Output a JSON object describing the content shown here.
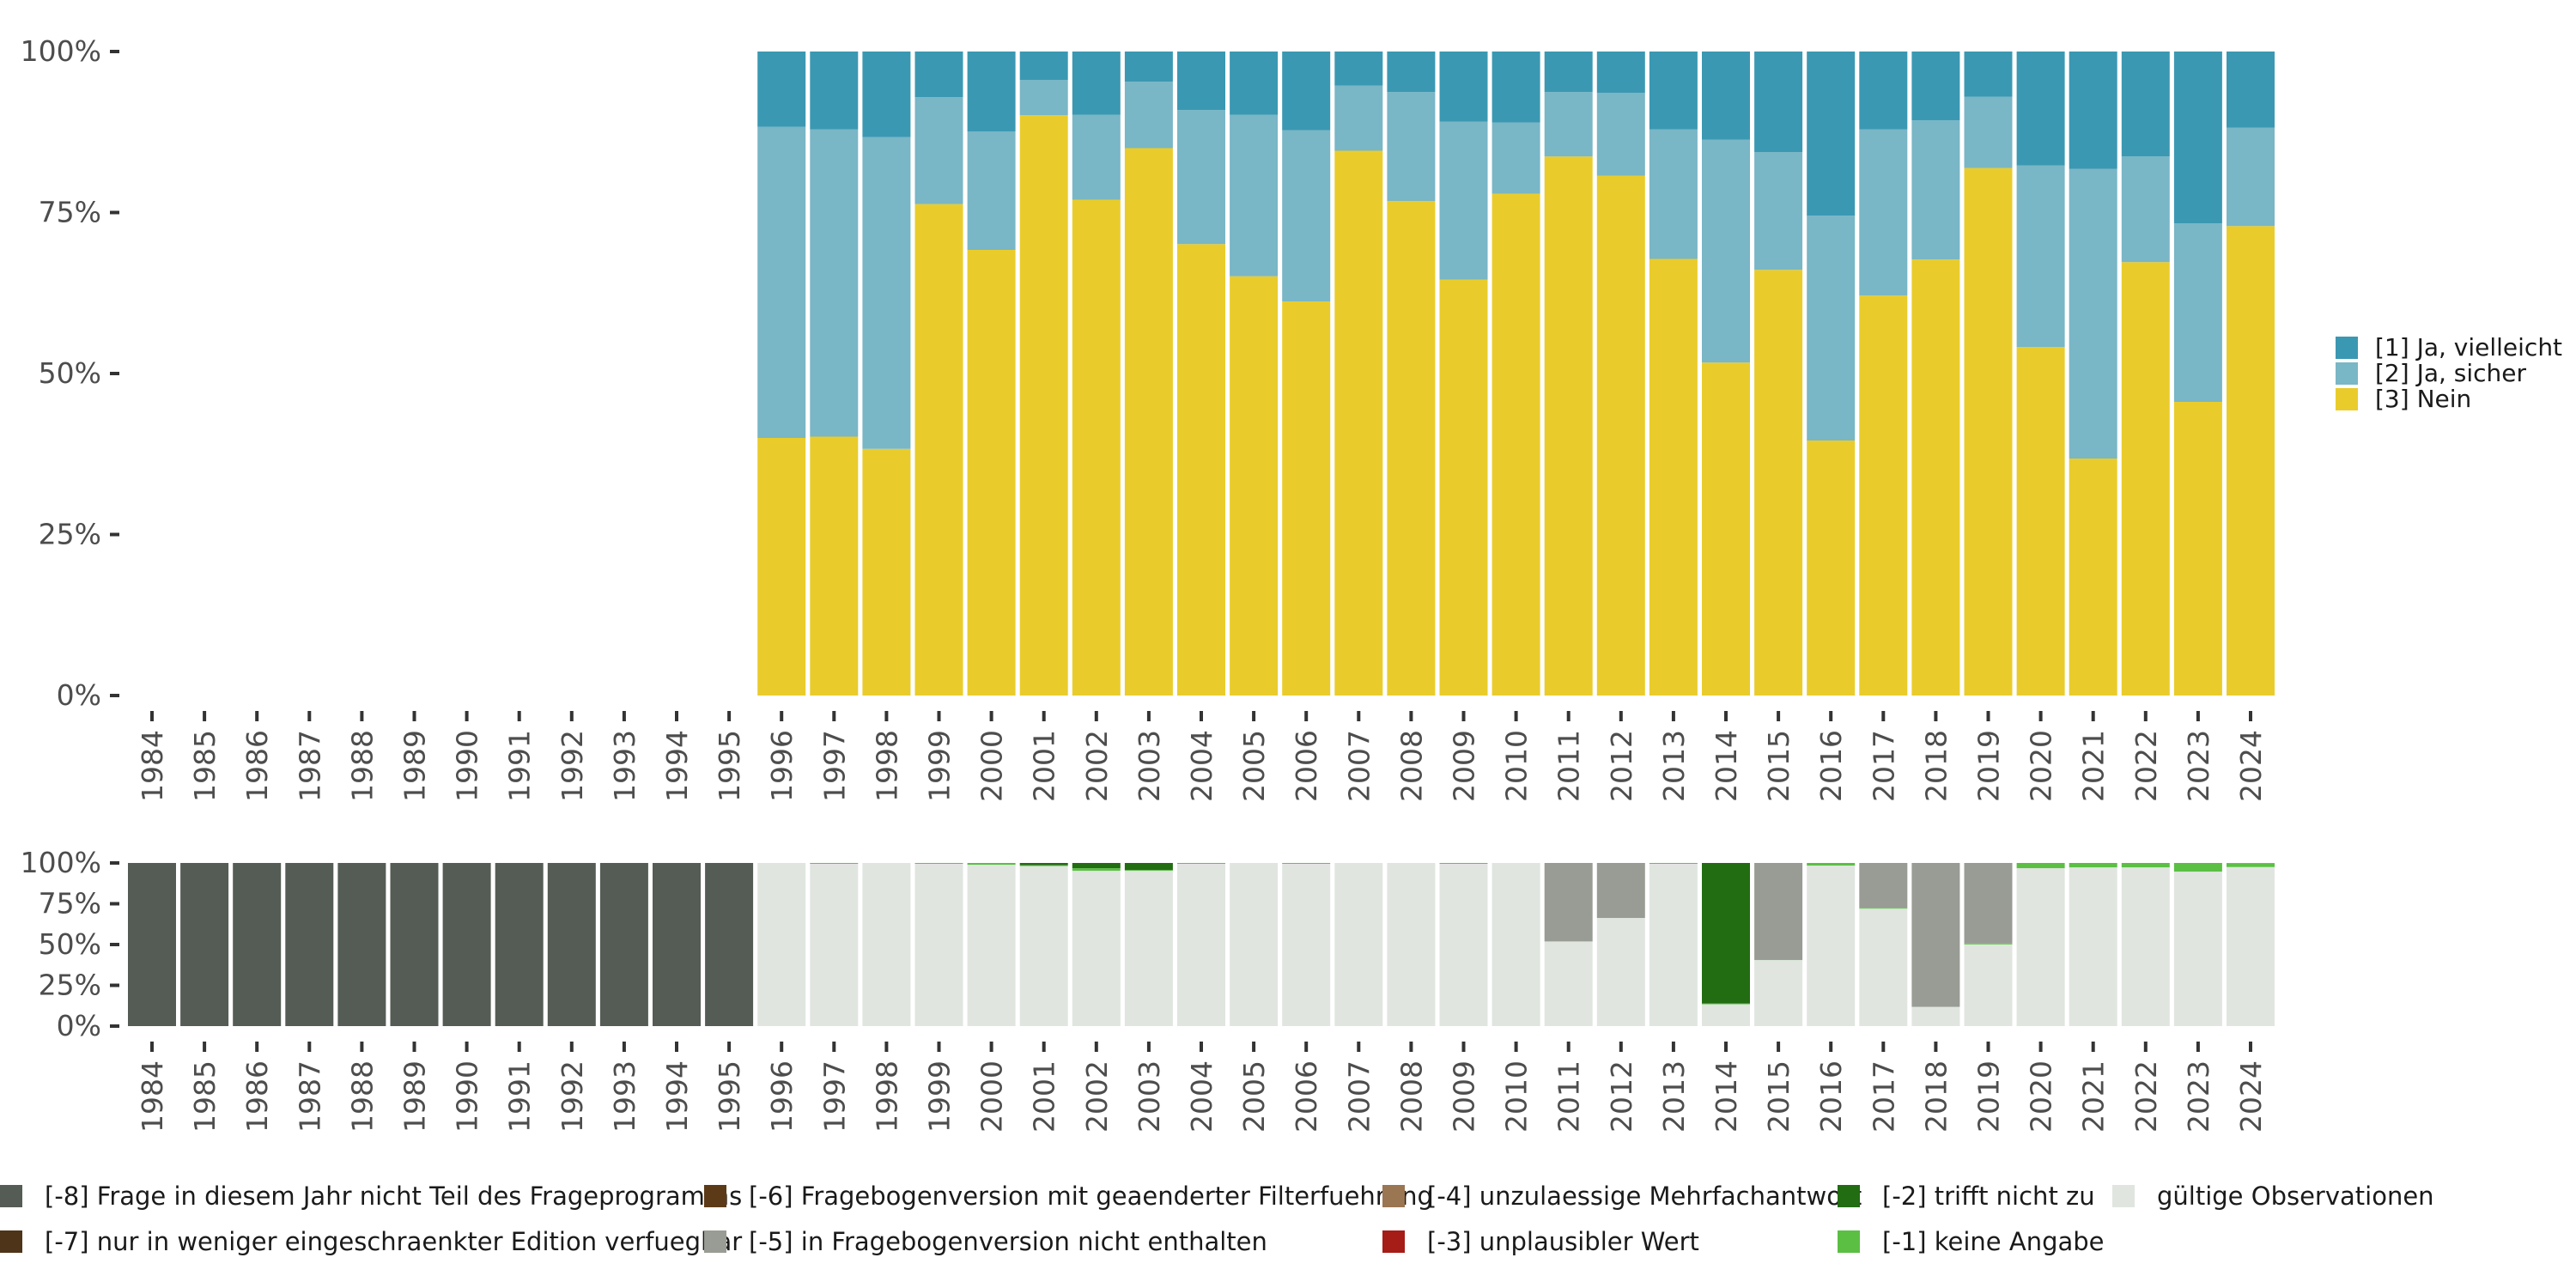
{
  "chart_data": [
    {
      "id": "main",
      "type": "bar",
      "stacked": true,
      "title": "",
      "xlabel": "",
      "ylabel": "",
      "ylim": [
        0,
        100
      ],
      "y_ticks": [
        "0%",
        "25%",
        "50%",
        "75%",
        "100%"
      ],
      "y_tick_values": [
        0,
        25,
        50,
        75,
        100
      ],
      "legend_position": "right",
      "categories": [
        "1984",
        "1985",
        "1986",
        "1987",
        "1988",
        "1989",
        "1990",
        "1991",
        "1992",
        "1993",
        "1994",
        "1995",
        "1996",
        "1997",
        "1998",
        "1999",
        "2000",
        "2001",
        "2002",
        "2003",
        "2004",
        "2005",
        "2006",
        "2007",
        "2008",
        "2009",
        "2010",
        "2011",
        "2012",
        "2013",
        "2014",
        "2015",
        "2016",
        "2017",
        "2018",
        "2019",
        "2020",
        "2021",
        "2022",
        "2023",
        "2024"
      ],
      "series": [
        {
          "name": "[3] Nein",
          "color": "#e9cc2b",
          "values": [
            null,
            null,
            null,
            null,
            null,
            null,
            null,
            null,
            null,
            null,
            null,
            null,
            40.0,
            40.2,
            38.3,
            76.3,
            69.2,
            90.1,
            77.0,
            85.0,
            70.1,
            65.1,
            61.2,
            84.6,
            76.8,
            64.6,
            77.9,
            83.7,
            80.7,
            67.8,
            51.7,
            66.1,
            39.6,
            62.1,
            67.7,
            81.9,
            54.1,
            36.8,
            67.3,
            45.6,
            72.9
          ]
        },
        {
          "name": "[2] Ja, sicher",
          "color": "#79b6c6",
          "values": [
            null,
            null,
            null,
            null,
            null,
            null,
            null,
            null,
            null,
            null,
            null,
            null,
            48.3,
            47.7,
            48.4,
            16.6,
            18.4,
            5.5,
            13.2,
            10.3,
            20.8,
            25.1,
            26.6,
            10.1,
            16.9,
            24.5,
            11.1,
            10.0,
            12.9,
            20.1,
            34.6,
            18.3,
            34.9,
            25.8,
            21.6,
            11.1,
            28.2,
            45.0,
            16.4,
            27.7,
            15.3
          ]
        },
        {
          "name": "[1] Ja, vielleicht",
          "color": "#3b98b2",
          "values": [
            null,
            null,
            null,
            null,
            null,
            null,
            null,
            null,
            null,
            null,
            null,
            null,
            11.7,
            12.1,
            13.3,
            7.1,
            12.4,
            4.4,
            9.8,
            4.7,
            9.1,
            9.8,
            12.2,
            5.3,
            6.3,
            10.9,
            11.0,
            6.3,
            6.4,
            12.1,
            13.7,
            15.6,
            25.5,
            12.1,
            10.7,
            7.0,
            17.7,
            18.2,
            16.3,
            26.7,
            11.8
          ]
        }
      ],
      "legend": [
        {
          "label": "[1] Ja, vielleicht",
          "color": "#3b98b2"
        },
        {
          "label": "[2] Ja, sicher",
          "color": "#79b6c6"
        },
        {
          "label": "[3] Nein",
          "color": "#e9cc2b"
        }
      ]
    },
    {
      "id": "missing",
      "type": "bar",
      "stacked": true,
      "title": "",
      "xlabel": "",
      "ylabel": "",
      "ylim": [
        0,
        100
      ],
      "y_ticks": [
        "0%",
        "25%",
        "50%",
        "75%",
        "100%"
      ],
      "y_tick_values": [
        0,
        25,
        50,
        75,
        100
      ],
      "legend_position": "bottom",
      "categories": [
        "1984",
        "1985",
        "1986",
        "1987",
        "1988",
        "1989",
        "1990",
        "1991",
        "1992",
        "1993",
        "1994",
        "1995",
        "1996",
        "1997",
        "1998",
        "1999",
        "2000",
        "2001",
        "2002",
        "2003",
        "2004",
        "2005",
        "2006",
        "2007",
        "2008",
        "2009",
        "2010",
        "2011",
        "2012",
        "2013",
        "2014",
        "2015",
        "2016",
        "2017",
        "2018",
        "2019",
        "2020",
        "2021",
        "2022",
        "2023",
        "2024"
      ],
      "series": [
        {
          "name": "gültige Observationen",
          "color": "#e0e5e0",
          "values": [
            0,
            0,
            0,
            0,
            0,
            0,
            0,
            0,
            0,
            0,
            0,
            0,
            100,
            99.5,
            100,
            99.5,
            98.9,
            98.1,
            95.2,
            95.2,
            99.5,
            100,
            99.5,
            100,
            100,
            99.5,
            100,
            51.9,
            66.3,
            99.5,
            13.4,
            40.5,
            98.4,
            72.0,
            11.8,
            50.1,
            96.8,
            97.3,
            97.3,
            94.7,
            97.5
          ]
        },
        {
          "name": "[-1] keine Angabe",
          "color": "#5bbf44",
          "values": [
            0,
            0,
            0,
            0,
            0,
            0,
            0,
            0,
            0,
            0,
            0,
            0,
            0,
            0.5,
            0,
            0.5,
            1.1,
            0.5,
            1.6,
            0.5,
            0.5,
            0,
            0.5,
            0,
            0,
            0.5,
            0,
            0,
            0,
            0.5,
            0.5,
            0.5,
            1.6,
            0.5,
            0,
            0.5,
            3.2,
            2.7,
            2.7,
            5.3,
            2.0
          ]
        },
        {
          "name": "[-2] trifft nicht zu",
          "color": "#226c12",
          "values": [
            0,
            0,
            0,
            0,
            0,
            0,
            0,
            0,
            0,
            0,
            0,
            0,
            0,
            0,
            0,
            0,
            0,
            1.4,
            3.2,
            4.3,
            0,
            0,
            0,
            0,
            0,
            0,
            0,
            0,
            0,
            0,
            86.1,
            0,
            0,
            0,
            0,
            0,
            0,
            0,
            0,
            0,
            0
          ]
        },
        {
          "name": "[-3] unplausibler Wert",
          "color": "#a61c17",
          "values": [
            0,
            0,
            0,
            0,
            0,
            0,
            0,
            0,
            0,
            0,
            0,
            0,
            0,
            0,
            0,
            0,
            0,
            0,
            0,
            0,
            0,
            0,
            0,
            0,
            0,
            0,
            0,
            0,
            0,
            0,
            0,
            0,
            0,
            0,
            0,
            0,
            0,
            0,
            0,
            0,
            0
          ]
        },
        {
          "name": "[-4] unzulaessige Mehrfachantwort",
          "color": "#9a7653",
          "values": [
            0,
            0,
            0,
            0,
            0,
            0,
            0,
            0,
            0,
            0,
            0,
            0,
            0,
            0,
            0,
            0,
            0,
            0,
            0,
            0,
            0,
            0,
            0,
            0,
            0,
            0,
            0,
            0,
            0,
            0,
            0,
            0,
            0,
            0,
            0,
            0,
            0,
            0,
            0,
            0,
            0
          ]
        },
        {
          "name": "[-5] in Fragebogenversion nicht enthalten",
          "color": "#989c94",
          "values": [
            0,
            0,
            0,
            0,
            0,
            0,
            0,
            0,
            0,
            0,
            0,
            0,
            0,
            0,
            0,
            0,
            0,
            0,
            0,
            0,
            0,
            0,
            0,
            0,
            0,
            0,
            0,
            48.1,
            33.7,
            0,
            0,
            59.0,
            0,
            27.5,
            88.2,
            49.4,
            0,
            0,
            0,
            0,
            0.5
          ]
        },
        {
          "name": "[-6] Fragebogenversion mit geaenderter Filterfuehrung",
          "color": "#5c3a17",
          "values": [
            0,
            0,
            0,
            0,
            0,
            0,
            0,
            0,
            0,
            0,
            0,
            0,
            0,
            0,
            0,
            0,
            0,
            0,
            0,
            0,
            0,
            0,
            0,
            0,
            0,
            0,
            0,
            0,
            0,
            0,
            0,
            0,
            0,
            0,
            0,
            0,
            0,
            0,
            0,
            0,
            0
          ]
        },
        {
          "name": "[-7] nur in weniger eingeschraenkter Edition verfuegbar",
          "color": "#4e3418",
          "values": [
            0,
            0,
            0,
            0,
            0,
            0,
            0,
            0,
            0,
            0,
            0,
            0,
            0,
            0,
            0,
            0,
            0,
            0,
            0,
            0,
            0,
            0,
            0,
            0,
            0,
            0,
            0,
            0,
            0,
            0,
            0,
            0,
            0,
            0,
            0,
            0,
            0,
            0,
            0,
            0,
            0
          ]
        },
        {
          "name": "[-8] Frage in diesem Jahr nicht Teil des Frageprogramms",
          "color": "#555c55",
          "values": [
            100,
            100,
            100,
            100,
            100,
            100,
            100,
            100,
            100,
            100,
            100,
            100,
            0,
            0,
            0,
            0,
            0,
            0,
            0,
            0,
            0,
            0,
            0,
            0,
            0,
            0,
            0,
            0,
            0,
            0,
            0,
            0,
            0,
            0,
            0,
            0,
            0,
            0,
            0,
            0,
            0
          ]
        }
      ],
      "legend": [
        {
          "label": "[-8] Frage in diesem Jahr nicht Teil des Frageprogramms",
          "color": "#555c55"
        },
        {
          "label": "[-7] nur in weniger eingeschraenkter Edition verfuegbar",
          "color": "#4e3418"
        },
        {
          "label": "[-6] Fragebogenversion mit geaenderter Filterfuehrung",
          "color": "#5c3a17"
        },
        {
          "label": "[-5] in Fragebogenversion nicht enthalten",
          "color": "#989c94"
        },
        {
          "label": "[-4] unzulaessige Mehrfachantwort",
          "color": "#9a7653"
        },
        {
          "label": "[-3] unplausibler Wert",
          "color": "#a61c17"
        },
        {
          "label": "[-2] trifft nicht zu",
          "color": "#226c12"
        },
        {
          "label": "[-1] keine Angabe",
          "color": "#5bbf44"
        },
        {
          "label": "gültige Observationen",
          "color": "#e0e5e0"
        }
      ]
    }
  ]
}
